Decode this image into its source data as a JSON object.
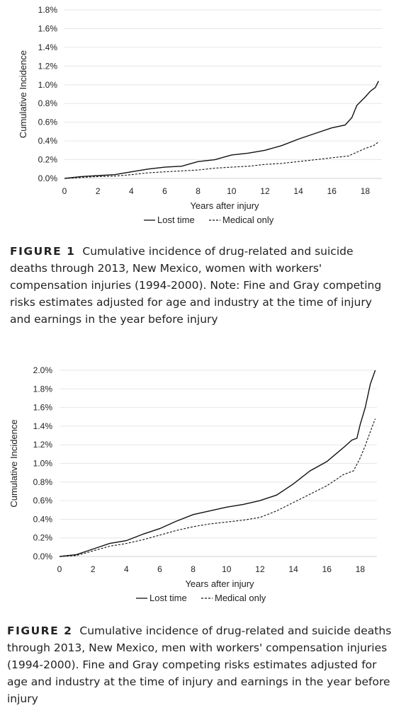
{
  "figures": [
    {
      "caption_label": "FIGURE 1",
      "caption_text": "Cumulative incidence of drug-related and suicide deaths through 2013, New Mexico, women with workers' compensation injuries (1994-2000). Note: Fine and Gray competing risks estimates adjusted for age and industry at the time of injury and earnings in the year before injury"
    },
    {
      "caption_label": "FIGURE 2",
      "caption_text": "Cumulative incidence of drug-related and suicide deaths through 2013, New Mexico, men with workers' compensation injuries (1994-2000). Fine and Gray competing risks estimates adjusted for age and industry at the time of injury and earnings in the year before injury"
    }
  ],
  "chart_data": [
    {
      "type": "line",
      "title": "",
      "xlabel": "Years after injury",
      "ylabel": "Cumulative Incidence",
      "xlim": [
        0,
        19
      ],
      "ylim": [
        0,
        1.8
      ],
      "x_ticks": [
        "0",
        "2",
        "4",
        "6",
        "8",
        "10",
        "12",
        "14",
        "16",
        "18"
      ],
      "y_ticks": [
        "0.0%",
        "0.2%",
        "0.4%",
        "0.6%",
        "0.8%",
        "1.0%",
        "1.2%",
        "1.4%",
        "1.6%",
        "1.8%"
      ],
      "grid": true,
      "legend_position": "bottom",
      "series": [
        {
          "name": "Lost time",
          "style": "solid",
          "points": [
            [
              0,
              0
            ],
            [
              1,
              0.02
            ],
            [
              2,
              0.03
            ],
            [
              3,
              0.04
            ],
            [
              4,
              0.07
            ],
            [
              5,
              0.1
            ],
            [
              6,
              0.12
            ],
            [
              7,
              0.13
            ],
            [
              8,
              0.18
            ],
            [
              9,
              0.2
            ],
            [
              10,
              0.25
            ],
            [
              11,
              0.27
            ],
            [
              12,
              0.3
            ],
            [
              13,
              0.35
            ],
            [
              14,
              0.42
            ],
            [
              15,
              0.48
            ],
            [
              16,
              0.54
            ],
            [
              16.8,
              0.57
            ],
            [
              17.2,
              0.65
            ],
            [
              17.5,
              0.78
            ],
            [
              18,
              0.87
            ],
            [
              18.3,
              0.93
            ],
            [
              18.6,
              0.97
            ],
            [
              18.8,
              1.04
            ]
          ]
        },
        {
          "name": "Medical only",
          "style": "dashed",
          "points": [
            [
              0,
              0
            ],
            [
              1,
              0.01
            ],
            [
              2,
              0.02
            ],
            [
              3,
              0.025
            ],
            [
              4,
              0.04
            ],
            [
              5,
              0.06
            ],
            [
              6,
              0.07
            ],
            [
              7,
              0.08
            ],
            [
              8,
              0.09
            ],
            [
              9,
              0.11
            ],
            [
              10,
              0.12
            ],
            [
              11,
              0.13
            ],
            [
              12,
              0.15
            ],
            [
              13,
              0.16
            ],
            [
              14,
              0.18
            ],
            [
              15,
              0.2
            ],
            [
              16,
              0.22
            ],
            [
              17,
              0.24
            ],
            [
              17.5,
              0.28
            ],
            [
              18,
              0.32
            ],
            [
              18.5,
              0.35
            ],
            [
              18.8,
              0.39
            ]
          ]
        }
      ]
    },
    {
      "type": "line",
      "title": "",
      "xlabel": "Years after injury",
      "ylabel": "Cumulative Incidence",
      "xlim": [
        0,
        19
      ],
      "ylim": [
        0,
        2.0
      ],
      "x_ticks": [
        "0",
        "2",
        "4",
        "6",
        "8",
        "10",
        "12",
        "14",
        "16",
        "18"
      ],
      "y_ticks": [
        "0.0%",
        "0.2%",
        "0.4%",
        "0.6%",
        "0.8%",
        "1.0%",
        "1.2%",
        "1.4%",
        "1.6%",
        "1.8%",
        "2.0%"
      ],
      "grid": true,
      "legend_position": "bottom",
      "series": [
        {
          "name": "Lost time",
          "style": "solid",
          "points": [
            [
              0,
              0
            ],
            [
              1,
              0.02
            ],
            [
              2,
              0.08
            ],
            [
              3,
              0.14
            ],
            [
              4,
              0.17
            ],
            [
              5,
              0.24
            ],
            [
              6,
              0.3
            ],
            [
              7,
              0.38
            ],
            [
              8,
              0.45
            ],
            [
              9,
              0.49
            ],
            [
              10,
              0.53
            ],
            [
              11,
              0.56
            ],
            [
              12,
              0.6
            ],
            [
              13,
              0.66
            ],
            [
              14,
              0.78
            ],
            [
              15,
              0.92
            ],
            [
              16,
              1.02
            ],
            [
              17,
              1.17
            ],
            [
              17.5,
              1.25
            ],
            [
              17.8,
              1.27
            ],
            [
              18,
              1.42
            ],
            [
              18.3,
              1.6
            ],
            [
              18.6,
              1.85
            ],
            [
              18.9,
              2.0
            ]
          ]
        },
        {
          "name": "Medical only",
          "style": "dashed",
          "points": [
            [
              0,
              0
            ],
            [
              1,
              0.01
            ],
            [
              2,
              0.06
            ],
            [
              3,
              0.11
            ],
            [
              4,
              0.14
            ],
            [
              5,
              0.18
            ],
            [
              6,
              0.23
            ],
            [
              7,
              0.28
            ],
            [
              8,
              0.32
            ],
            [
              9,
              0.35
            ],
            [
              10,
              0.37
            ],
            [
              11,
              0.39
            ],
            [
              12,
              0.42
            ],
            [
              13,
              0.49
            ],
            [
              14,
              0.58
            ],
            [
              15,
              0.67
            ],
            [
              16,
              0.76
            ],
            [
              17,
              0.88
            ],
            [
              17.6,
              0.92
            ],
            [
              18,
              1.06
            ],
            [
              18.3,
              1.19
            ],
            [
              18.6,
              1.34
            ],
            [
              18.9,
              1.48
            ]
          ]
        }
      ]
    }
  ]
}
